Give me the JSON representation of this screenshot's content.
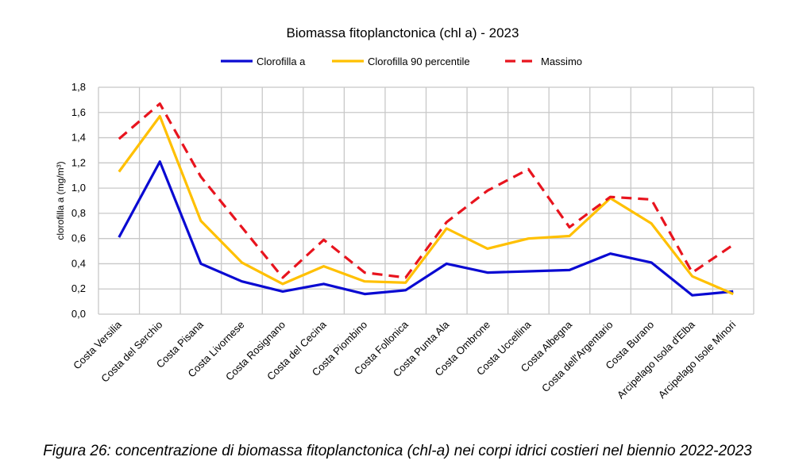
{
  "chart_data": {
    "type": "line",
    "title": "Biomassa fitoplanctonica (chl a) - 2023",
    "xlabel": "",
    "ylabel": "clorofilla a (mg/m³)",
    "ylim": [
      0,
      1.8
    ],
    "y_ticks": [
      "0,0",
      "0,2",
      "0,4",
      "0,6",
      "0,8",
      "1,0",
      "1,2",
      "1,4",
      "1,6",
      "1,8"
    ],
    "grid": true,
    "legend_position": "top-center",
    "categories": [
      "Costa Versilia",
      "Costa del Serchio",
      "Costa Pisana",
      "Costa Livornese",
      "Costa Rosignano",
      "Costa del Cecina",
      "Costa Piombino",
      "Costa Follonica",
      "Costa Punta Ala",
      "Costa Ombrone",
      "Costa Uccellina",
      "Costa Albegna",
      "Costa dell'Argentario",
      "Costa Burano",
      "Arcipelago Isola d'Elba",
      "Arcipelago Isole Minori"
    ],
    "series": [
      {
        "name": "Clorofilla a",
        "color": "#0a0ad2",
        "style": "solid",
        "values": [
          0.61,
          1.21,
          0.4,
          0.26,
          0.18,
          0.24,
          0.16,
          0.19,
          0.4,
          0.33,
          0.34,
          0.35,
          0.48,
          0.41,
          0.15,
          0.18
        ]
      },
      {
        "name": "Clorofilla 90 percentile",
        "color": "#ffc000",
        "style": "solid",
        "values": [
          1.13,
          1.57,
          0.74,
          0.41,
          0.24,
          0.38,
          0.26,
          0.25,
          0.68,
          0.52,
          0.6,
          0.62,
          0.92,
          0.72,
          0.3,
          0.16
        ]
      },
      {
        "name": "Massimo",
        "color": "#e8141e",
        "style": "dashed",
        "values": [
          1.39,
          1.67,
          1.09,
          0.69,
          0.29,
          0.59,
          0.33,
          0.29,
          0.73,
          0.98,
          1.15,
          0.69,
          0.93,
          0.91,
          0.33,
          0.55
        ]
      }
    ]
  },
  "caption": "Figura 26: concentrazione di biomassa fitoplanctonica (chl-a) nei corpi idrici costieri nel biennio 2022-2023"
}
